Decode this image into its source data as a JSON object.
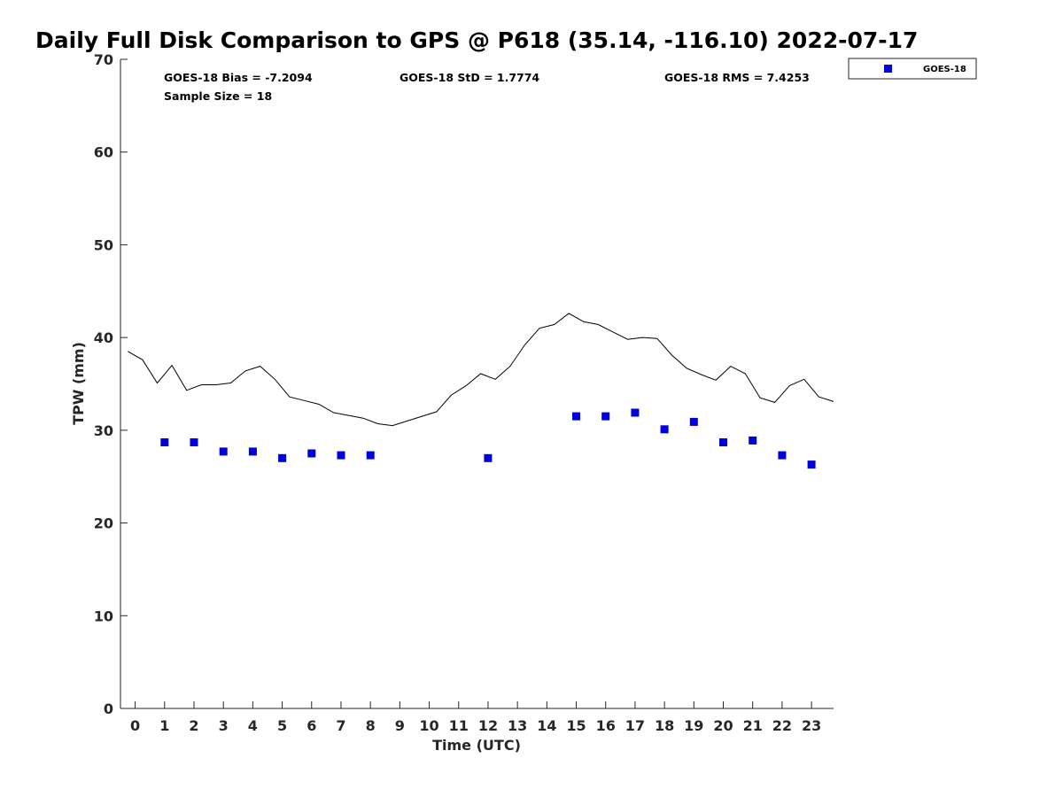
{
  "chart_data": {
    "type": "scatter",
    "title": "Daily Full Disk Comparison to GPS @ P618 (35.14, -116.10) 2022-07-17",
    "xlabel": "Time (UTC)",
    "ylabel": "TPW (mm)",
    "xlim": [
      -0.5,
      23.75
    ],
    "ylim": [
      0,
      70
    ],
    "x_ticks": [
      0,
      1,
      2,
      3,
      4,
      5,
      6,
      7,
      8,
      9,
      10,
      11,
      12,
      13,
      14,
      15,
      16,
      17,
      18,
      19,
      20,
      21,
      22,
      23
    ],
    "y_ticks": [
      0,
      10,
      20,
      30,
      40,
      50,
      60,
      70
    ],
    "grid": false,
    "legend_position": "top-right",
    "stats": {
      "bias": "GOES-18 Bias = -7.2094",
      "std": "GOES-18 StD = 1.7774",
      "rms": "GOES-18 RMS = 7.4253",
      "sample_size": "Sample Size = 18"
    },
    "series": [
      {
        "name": "GPS",
        "kind": "line",
        "color": "#000000",
        "x": [
          -0.25,
          0.25,
          0.75,
          1.25,
          1.75,
          2.25,
          2.75,
          3.25,
          3.75,
          4.25,
          4.75,
          5.25,
          5.75,
          6.25,
          6.75,
          7.25,
          7.75,
          8.25,
          8.75,
          9.25,
          9.75,
          10.25,
          10.75,
          11.25,
          11.75,
          12.25,
          12.75,
          13.25,
          13.75,
          14.25,
          14.75,
          15.25,
          15.75,
          16.25,
          16.75,
          17.25,
          17.75,
          18.25,
          18.75,
          19.25,
          19.75,
          20.25,
          20.75,
          21.25,
          21.75,
          22.25,
          22.75,
          23.25,
          23.75
        ],
        "values": [
          38.5,
          37.6,
          35.1,
          37.0,
          34.3,
          34.9,
          34.9,
          35.1,
          36.4,
          36.9,
          35.5,
          33.6,
          33.2,
          32.8,
          31.9,
          31.6,
          31.3,
          30.7,
          30.5,
          31.0,
          31.5,
          32.0,
          33.8,
          34.8,
          36.1,
          35.5,
          36.9,
          39.2,
          41.0,
          41.4,
          42.6,
          41.7,
          41.4,
          40.6,
          39.8,
          40.0,
          39.9,
          38.1,
          36.7,
          36.0,
          35.4,
          36.9,
          36.1,
          33.5,
          33.0,
          34.8,
          35.5,
          33.6,
          33.1
        ]
      },
      {
        "name": "GOES-18",
        "kind": "scatter",
        "color": "#0000dd",
        "x": [
          1,
          2,
          3,
          4,
          5,
          6,
          7,
          8,
          12,
          15,
          16,
          17,
          18,
          19,
          20,
          21,
          22,
          23
        ],
        "values": [
          28.7,
          28.7,
          27.7,
          27.7,
          27.0,
          27.5,
          27.3,
          27.3,
          27.0,
          31.5,
          31.5,
          31.9,
          30.1,
          30.9,
          28.7,
          28.9,
          27.3,
          26.3
        ]
      }
    ],
    "legend": [
      {
        "label": "GOES-18",
        "color": "#0000dd"
      }
    ]
  }
}
